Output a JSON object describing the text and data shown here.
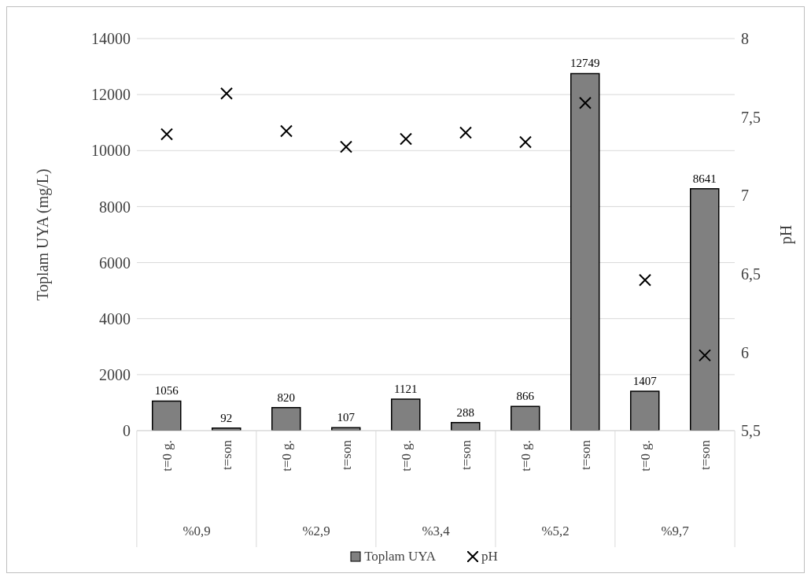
{
  "chart_data": {
    "type": "bar",
    "categories": [
      "t=0 g.",
      "t=son",
      "t=0 g.",
      "t=son",
      "t=0 g.",
      "t=son",
      "t=0 g.",
      "t=son",
      "t=0 g.",
      "t=son"
    ],
    "series": [
      {
        "name": "Toplam UYA",
        "color": "#808080",
        "values": [
          1056,
          92,
          820,
          107,
          1121,
          288,
          866,
          12749,
          1407,
          8641
        ],
        "value_labels": [
          "1056",
          "92",
          "820",
          "107",
          "1121",
          "288",
          "866",
          "12749",
          "1407",
          "8641"
        ]
      },
      {
        "name": "pH",
        "type": "scatter",
        "axis": "y2",
        "color": "#000000",
        "marker": "cross",
        "values": [
          7.39,
          7.65,
          7.41,
          7.31,
          7.36,
          7.4,
          7.34,
          7.59,
          6.46,
          5.98
        ]
      }
    ],
    "annotations": [
      "%0,9",
      "%2,9",
      "%3,4",
      "%5,2",
      "%9,7"
    ],
    "ylabel": "Toplam UYA (mg/L)",
    "y2label": "pH",
    "ylim": [
      0,
      14000
    ],
    "yticks": [
      0,
      2000,
      4000,
      6000,
      8000,
      10000,
      12000,
      14000
    ],
    "y2lim": [
      5.5,
      8
    ],
    "y2ticks": [
      {
        "value": 5.5,
        "label": "5,5"
      },
      6,
      {
        "value": 6.5,
        "label": "6,5"
      },
      7,
      {
        "value": 7.5,
        "label": "7,5"
      },
      8
    ],
    "grid": "y",
    "legend": "bottom"
  }
}
